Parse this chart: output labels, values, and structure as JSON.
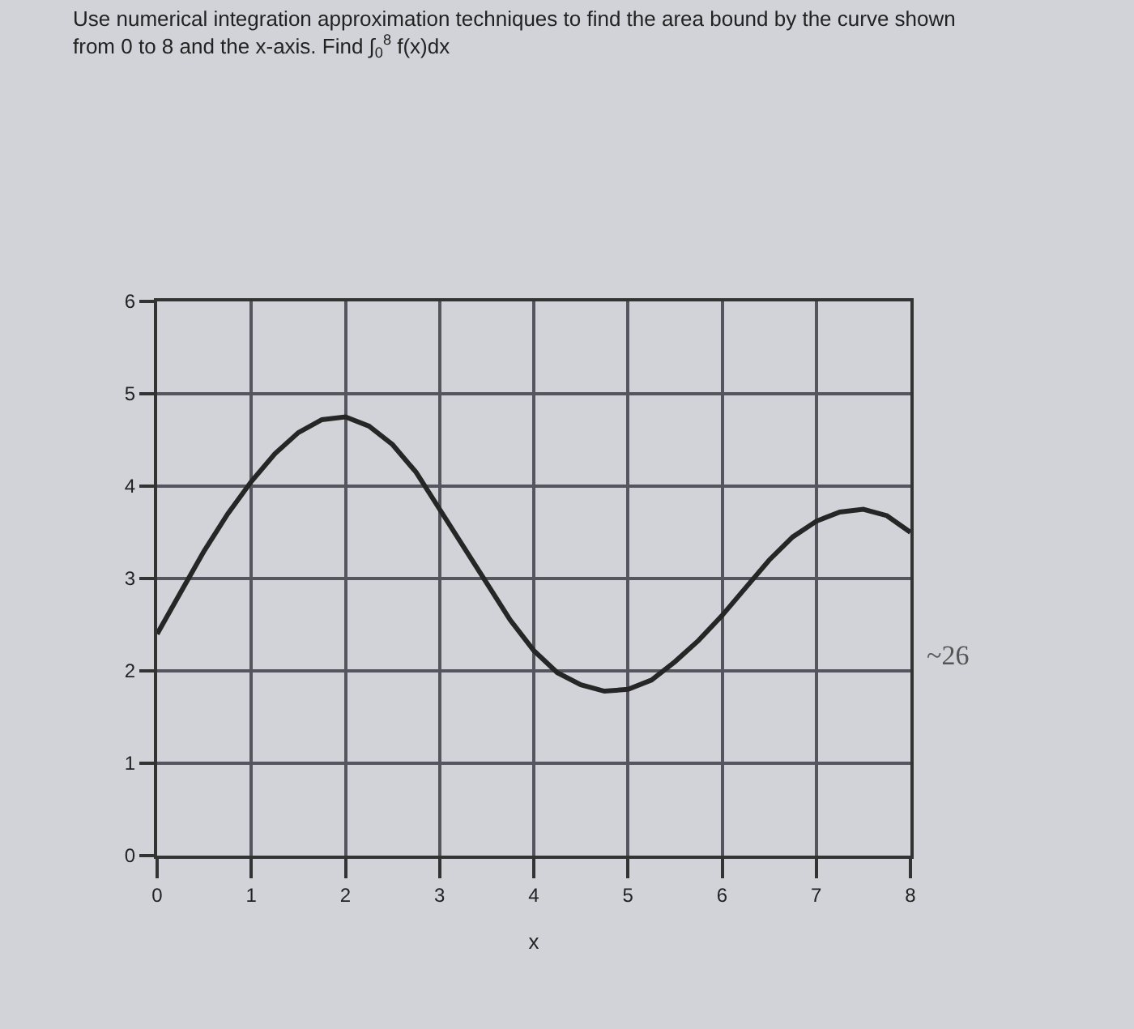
{
  "chart_data": {
    "type": "line",
    "title": "Use numerical integration approximation techniques to find the area bound by the curve shown from 0 to 8 and the x-axis. Find ∫$_{0}$$^{8}$ f(x)dx",
    "xlabel": "x",
    "x": [
      0,
      0.25,
      0.5,
      0.75,
      1,
      1.25,
      1.5,
      1.75,
      2,
      2.25,
      2.5,
      2.75,
      3,
      3.25,
      3.5,
      3.75,
      4,
      4.25,
      4.5,
      4.75,
      5,
      5.25,
      5.5,
      5.75,
      6,
      6.25,
      6.5,
      6.75,
      7,
      7.25,
      7.5,
      7.75,
      8
    ],
    "values": [
      2.4,
      2.85,
      3.3,
      3.7,
      4.05,
      4.35,
      4.58,
      4.72,
      4.75,
      4.65,
      4.45,
      4.15,
      3.75,
      3.35,
      2.95,
      2.55,
      2.22,
      1.98,
      1.85,
      1.78,
      1.8,
      1.9,
      2.1,
      2.33,
      2.6,
      2.9,
      3.2,
      3.45,
      3.62,
      3.72,
      3.75,
      3.68,
      3.5
    ],
    "color": "#262626",
    "xlim": [
      0,
      8
    ],
    "ylim": [
      0,
      6
    ],
    "xticks": [
      0,
      1,
      2,
      3,
      4,
      5,
      6,
      7,
      8
    ],
    "yticks": [
      0,
      1,
      2,
      3,
      4,
      5,
      6
    ],
    "grid": true,
    "marker": "none",
    "line_style": "solid",
    "annotations": [
      "~26"
    ]
  }
}
